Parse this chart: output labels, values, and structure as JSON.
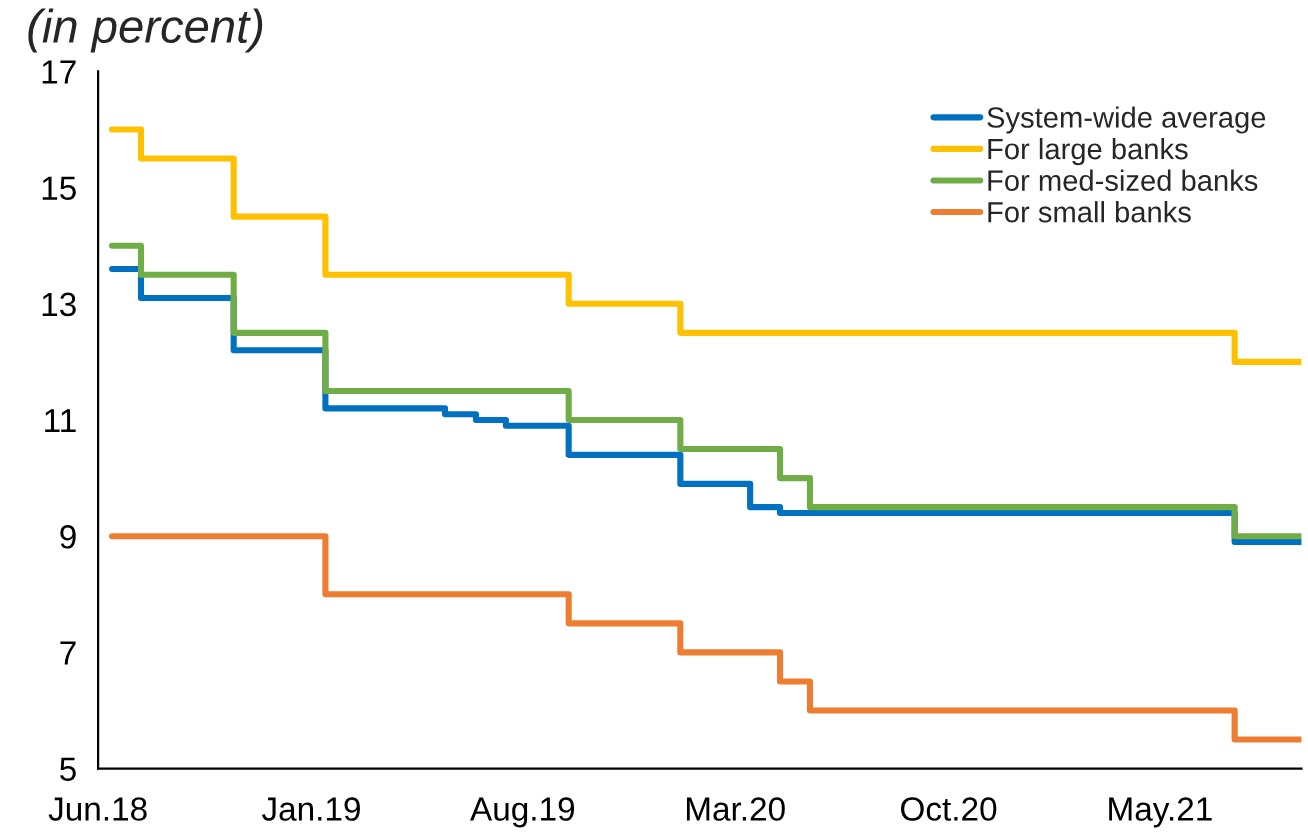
{
  "chart_data": {
    "type": "step",
    "title": "(in percent)",
    "xlim": [
      "2018-06-01",
      "2021-09-20"
    ],
    "ylim": [
      5,
      17
    ],
    "yticks": [
      5,
      7,
      9,
      11,
      13,
      15,
      17
    ],
    "xticks": [
      {
        "value": "2018-06-01",
        "label": "Jun.18"
      },
      {
        "value": "2019-01-01",
        "label": "Jan.19"
      },
      {
        "value": "2019-08-01",
        "label": "Aug.19"
      },
      {
        "value": "2020-03-01",
        "label": "Mar.20"
      },
      {
        "value": "2020-10-01",
        "label": "Oct.20"
      },
      {
        "value": "2021-05-01",
        "label": "May.21"
      }
    ],
    "grid": false,
    "legend": "top right",
    "line_style": "solid",
    "marker": "none",
    "series": [
      {
        "name": "System-wide average",
        "color": "#0070c0",
        "x": [
          "2018-06-15",
          "2018-07-14",
          "2018-10-15",
          "2019-01-15",
          "2019-05-15",
          "2019-06-15",
          "2019-07-15",
          "2019-09-16",
          "2020-01-06",
          "2020-03-16",
          "2020-04-15",
          "2021-07-15",
          "2021-09-20"
        ],
        "values": [
          13.6,
          13.1,
          12.2,
          11.2,
          11.1,
          11.0,
          10.9,
          10.4,
          9.9,
          9.5,
          9.4,
          8.9,
          8.9
        ]
      },
      {
        "name": "For large banks",
        "color": "#ffc000",
        "x": [
          "2018-06-15",
          "2018-07-14",
          "2018-10-15",
          "2019-01-15",
          "2019-09-16",
          "2020-01-06",
          "2021-07-15",
          "2021-09-20"
        ],
        "values": [
          16,
          15.5,
          14.5,
          13.5,
          13,
          12.5,
          12,
          12
        ]
      },
      {
        "name": "For med-sized banks",
        "color": "#70ad47",
        "x": [
          "2018-06-15",
          "2018-07-14",
          "2018-10-15",
          "2019-01-15",
          "2019-09-16",
          "2020-01-06",
          "2020-04-15",
          "2020-05-15",
          "2021-07-15",
          "2021-09-20"
        ],
        "values": [
          14,
          13.5,
          12.5,
          11.5,
          11,
          10.5,
          10,
          9.5,
          9,
          9
        ]
      },
      {
        "name": "For small banks",
        "color": "#ed7d31",
        "x": [
          "2018-06-15",
          "2019-01-15",
          "2019-09-16",
          "2020-01-06",
          "2020-04-15",
          "2020-05-15",
          "2021-07-15",
          "2021-09-20"
        ],
        "values": [
          9,
          8,
          7.5,
          7,
          6.5,
          6,
          5.5,
          5.5
        ]
      }
    ]
  }
}
